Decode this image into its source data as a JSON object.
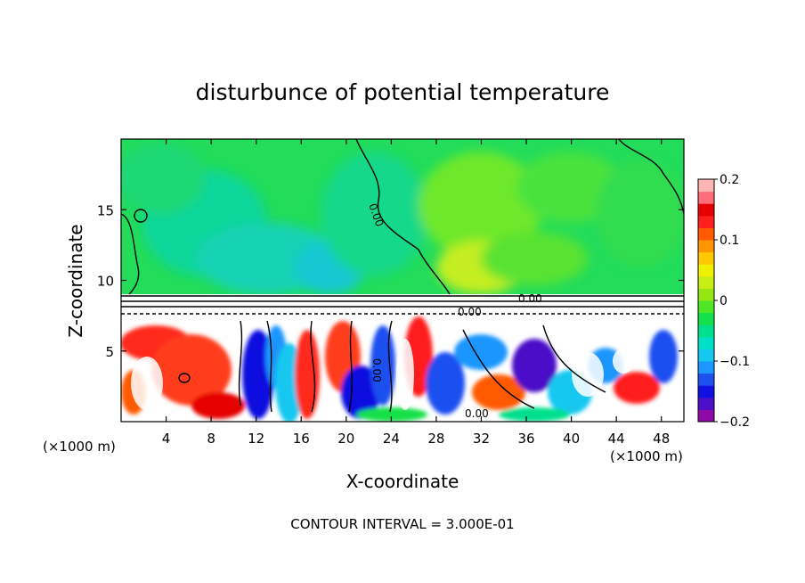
{
  "chart_data": {
    "type": "heatmap",
    "title": "disturbunce of potential temperature",
    "xlabel": "X-coordinate",
    "ylabel": "Z-coordinate",
    "x_unit": "(×1000 m)",
    "y_unit": "(×1000 m)",
    "xlim": [
      0,
      50
    ],
    "ylim": [
      0,
      20
    ],
    "x_ticks": [
      "4",
      "8",
      "12",
      "16",
      "20",
      "24",
      "28",
      "32",
      "36",
      "40",
      "44",
      "48"
    ],
    "y_ticks": [
      "5",
      "10",
      "15"
    ],
    "colorbar": {
      "min": -0.2,
      "max": 0.2,
      "tick_labels": [
        "0.2",
        "0.1",
        "0",
        "−0.1",
        "−0.2"
      ],
      "colors": [
        "#8e0aa8",
        "#4b10c8",
        "#1010e0",
        "#1e50f0",
        "#1e96ff",
        "#14c8f0",
        "#00e0c8",
        "#00e08c",
        "#14e04a",
        "#50e628",
        "#96e614",
        "#c8ee14",
        "#f0f000",
        "#ffc800",
        "#ff9600",
        "#ff5a00",
        "#ff1e1e",
        "#e60000",
        "#ff6e78",
        "#ffb4b4"
      ]
    },
    "contour_labels": [
      "0.00",
      "0.00",
      "0.00",
      "0.00",
      "0.00"
    ],
    "contour_interval": "CONTOUR INTERVAL = 3.000E-01",
    "field_summary": {
      "upper_layer_z_9_to_20": "near-zero disturbance, about -0.06 to 0.04 (green/cyan, cyan minimum near x=12-18, yellow-green near x=30-34)",
      "lower_layer_z_0_to_8": "strong mixed disturbance, roughly -0.2 to 0.2 (red/white warm cells, blue/white cool cells)"
    }
  }
}
